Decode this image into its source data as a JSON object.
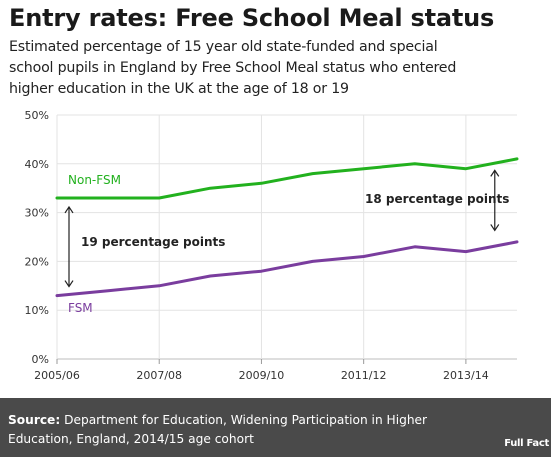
{
  "header": {
    "title": "Entry rates: Free School Meal status",
    "subtitle_lines": [
      "Estimated percentage of 15 year old state-funded and special",
      "school pupils in England by Free School Meal status who entered",
      "higher education in the UK at the age of 18 or 19"
    ]
  },
  "chart_data": {
    "type": "line",
    "x": [
      2005,
      2006,
      2007,
      2008,
      2009,
      2010,
      2011,
      2012,
      2013,
      2014
    ],
    "x_tick_labels": [
      "2005/06",
      "2007/08",
      "2009/10",
      "2011/12",
      "2013/14"
    ],
    "y_tick_labels": [
      "0%",
      "10%",
      "20%",
      "30%",
      "40%",
      "50%"
    ],
    "ylim": [
      0,
      50
    ],
    "grid": true,
    "series": [
      {
        "name": "Non-FSM",
        "color": "#22b11e",
        "values": [
          33,
          33,
          33,
          35,
          36,
          38,
          39,
          40,
          39,
          41
        ]
      },
      {
        "name": "FSM",
        "color": "#7a3d9e",
        "values": [
          13,
          14,
          15,
          17,
          18,
          20,
          21,
          23,
          22,
          24
        ]
      }
    ],
    "annotations": [
      {
        "text": "19 percentage points"
      },
      {
        "text": "18 percentage points"
      }
    ]
  },
  "footer": {
    "source_label": "Source:",
    "source_text": "Department for Education, Widening Participation in Higher Education, England, 2014/15 age cohort",
    "logo_text": "Full Fact"
  }
}
